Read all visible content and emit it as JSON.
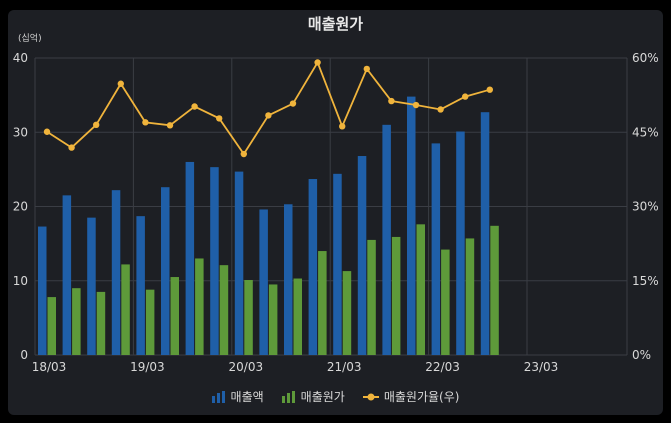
{
  "chart_data": {
    "type": "bar",
    "title": "매출원가",
    "unit_label": "(십억)",
    "x_ticks": [
      "18/03",
      "19/03",
      "20/03",
      "21/03",
      "22/03",
      "23/03"
    ],
    "x_range": [
      "18/03",
      "23/12"
    ],
    "y_left": {
      "ticks": [
        "0",
        "10",
        "20",
        "30",
        "40"
      ],
      "range": [
        0,
        40
      ]
    },
    "y_right": {
      "ticks": [
        "0%",
        "15%",
        "30%",
        "45%",
        "60%"
      ],
      "range": [
        0,
        60
      ]
    },
    "grid": true,
    "legend_position": "bottom",
    "categories": [
      "18/03",
      "18/06",
      "18/09",
      "18/12",
      "19/03",
      "19/06",
      "19/09",
      "19/12",
      "20/03",
      "20/06",
      "20/09",
      "20/12",
      "21/03",
      "21/06",
      "21/09",
      "21/12",
      "22/03",
      "22/06",
      "22/09"
    ],
    "series": [
      {
        "name": "매출액",
        "kind": "bar",
        "axis": "left",
        "color": "#1f5fa8",
        "values": [
          17.3,
          21.5,
          18.5,
          22.2,
          18.7,
          22.6,
          26.0,
          25.3,
          24.7,
          19.6,
          20.3,
          23.7,
          24.4,
          26.8,
          31.0,
          34.8,
          28.5,
          30.1,
          32.7
        ]
      },
      {
        "name": "매출원가",
        "kind": "bar",
        "axis": "left",
        "color": "#5e9a3a",
        "values": [
          7.8,
          9.0,
          8.5,
          12.2,
          8.8,
          10.5,
          13.0,
          12.1,
          10.1,
          9.5,
          10.3,
          14.0,
          11.3,
          15.5,
          15.9,
          17.6,
          14.2,
          15.7,
          17.4
        ]
      },
      {
        "name": "매출원가율(우)",
        "kind": "line",
        "axis": "right",
        "color": "#f0b43c",
        "values": [
          45.1,
          41.9,
          46.5,
          54.8,
          47.0,
          46.4,
          50.2,
          47.8,
          40.6,
          48.4,
          50.8,
          59.1,
          46.2,
          57.8,
          51.3,
          50.5,
          49.6,
          52.2,
          53.6
        ]
      }
    ]
  }
}
